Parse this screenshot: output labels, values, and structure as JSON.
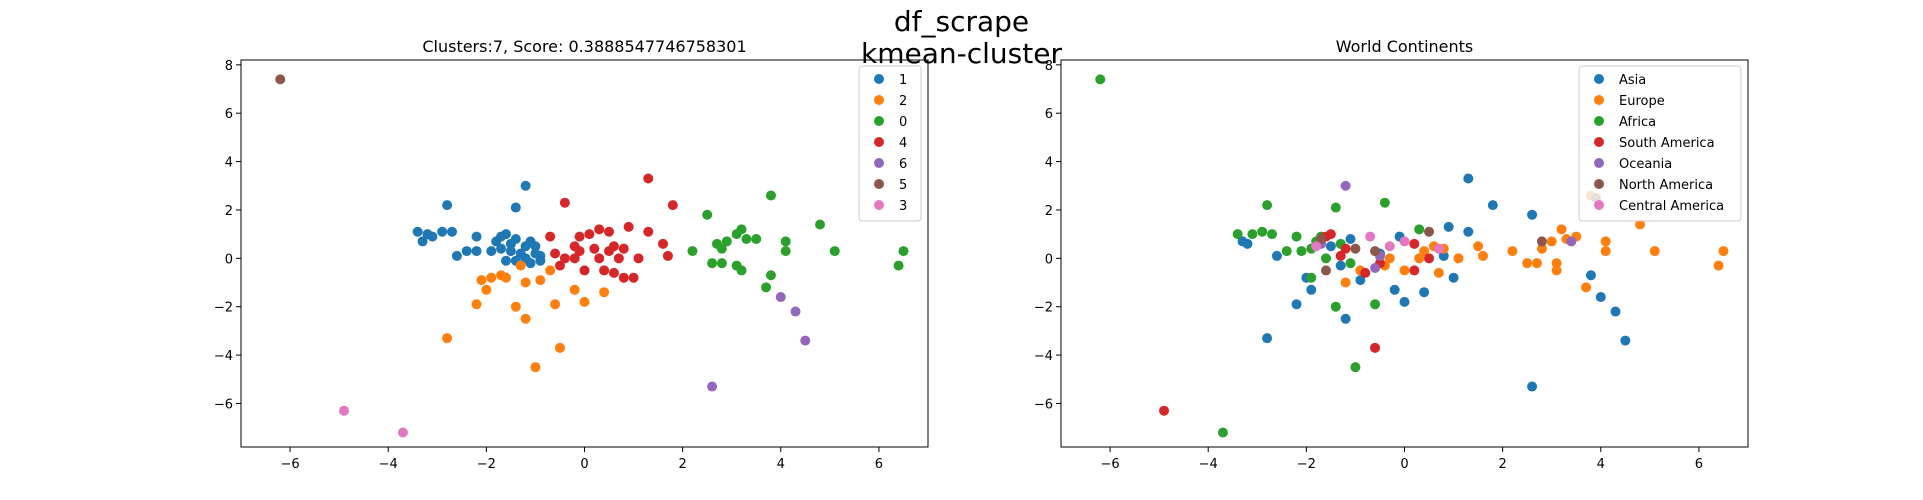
{
  "figure": {
    "suptitle_line1": "df_scrape",
    "suptitle_line2": "kmean-cluster"
  },
  "chart_data": [
    {
      "type": "scatter",
      "title": "Clusters:7, Score: 0.3888547746758301",
      "xlim": [
        -7.0,
        7.0
      ],
      "ylim": [
        -7.8,
        8.2
      ],
      "xticks": [
        -6,
        -4,
        -2,
        0,
        2,
        4,
        6
      ],
      "yticks": [
        -6,
        -4,
        -2,
        0,
        2,
        4,
        6,
        8
      ],
      "grid": false,
      "legend_position": "top-right",
      "series": [
        {
          "name": "1",
          "color": "#1f77b4",
          "points": [
            [
              -2.9,
              1.1
            ],
            [
              -3.2,
              1.0
            ],
            [
              -3.3,
              0.7
            ],
            [
              -3.4,
              1.1
            ],
            [
              -3.1,
              0.9
            ],
            [
              -2.8,
              2.2
            ],
            [
              -2.7,
              1.1
            ],
            [
              -2.6,
              0.1
            ],
            [
              -2.4,
              0.3
            ],
            [
              -2.2,
              0.3
            ],
            [
              -2.2,
              0.9
            ],
            [
              -1.9,
              0.3
            ],
            [
              -1.8,
              0.7
            ],
            [
              -1.7,
              0.9
            ],
            [
              -1.6,
              1.0
            ],
            [
              -1.5,
              0.6
            ],
            [
              -1.4,
              0.8
            ],
            [
              -1.3,
              0.2
            ],
            [
              -1.2,
              0.5
            ],
            [
              -1.1,
              0.7
            ],
            [
              -1.0,
              0.5
            ],
            [
              -1.6,
              -0.1
            ],
            [
              -1.4,
              -0.1
            ],
            [
              -1.2,
              0.0
            ],
            [
              -1.1,
              -0.2
            ],
            [
              -0.9,
              0.1
            ],
            [
              -0.9,
              -0.1
            ],
            [
              -1.4,
              2.1
            ],
            [
              -1.2,
              3.0
            ],
            [
              -1.7,
              0.4
            ],
            [
              -1.5,
              0.3
            ],
            [
              -1.0,
              0.2
            ]
          ]
        },
        {
          "name": "2",
          "color": "#ff7f0e",
          "points": [
            [
              -2.8,
              -3.3
            ],
            [
              -2.2,
              -1.9
            ],
            [
              -2.1,
              -0.9
            ],
            [
              -1.9,
              -0.8
            ],
            [
              -2.0,
              -1.3
            ],
            [
              -1.6,
              -0.8
            ],
            [
              -1.4,
              -2.0
            ],
            [
              -1.2,
              -1.0
            ],
            [
              -1.2,
              -2.5
            ],
            [
              -1.0,
              -4.5
            ],
            [
              -0.9,
              -0.9
            ],
            [
              -0.7,
              -0.5
            ],
            [
              -0.6,
              -1.9
            ],
            [
              -0.5,
              -3.7
            ],
            [
              -0.2,
              -1.3
            ],
            [
              0.0,
              -1.8
            ],
            [
              0.4,
              -1.4
            ],
            [
              -1.3,
              -0.3
            ],
            [
              -1.7,
              -0.7
            ]
          ]
        },
        {
          "name": "0",
          "color": "#2ca02c",
          "points": [
            [
              2.2,
              0.3
            ],
            [
              2.5,
              1.8
            ],
            [
              2.6,
              -0.2
            ],
            [
              2.7,
              0.6
            ],
            [
              2.8,
              0.4
            ],
            [
              2.9,
              0.7
            ],
            [
              2.8,
              -0.2
            ],
            [
              3.1,
              1.0
            ],
            [
              3.1,
              -0.3
            ],
            [
              3.2,
              1.2
            ],
            [
              3.2,
              -0.5
            ],
            [
              3.3,
              0.8
            ],
            [
              3.5,
              0.8
            ],
            [
              3.7,
              -1.2
            ],
            [
              3.8,
              2.6
            ],
            [
              3.8,
              -0.7
            ],
            [
              4.1,
              0.3
            ],
            [
              4.1,
              0.7
            ],
            [
              4.8,
              1.4
            ],
            [
              5.1,
              0.3
            ],
            [
              6.4,
              -0.3
            ],
            [
              6.5,
              0.3
            ]
          ]
        },
        {
          "name": "4",
          "color": "#d62728",
          "points": [
            [
              -0.7,
              0.9
            ],
            [
              -0.6,
              0.2
            ],
            [
              -0.5,
              -0.3
            ],
            [
              -0.4,
              0.0
            ],
            [
              -0.4,
              2.3
            ],
            [
              -0.2,
              0.5
            ],
            [
              -0.1,
              0.9
            ],
            [
              -0.2,
              0.0
            ],
            [
              0.0,
              -0.5
            ],
            [
              0.1,
              1.0
            ],
            [
              0.2,
              0.4
            ],
            [
              0.3,
              1.2
            ],
            [
              0.3,
              0.0
            ],
            [
              0.5,
              0.3
            ],
            [
              0.5,
              1.1
            ],
            [
              0.6,
              0.5
            ],
            [
              0.6,
              -0.6
            ],
            [
              0.7,
              0.0
            ],
            [
              0.8,
              0.4
            ],
            [
              0.9,
              1.3
            ],
            [
              1.0,
              -0.8
            ],
            [
              1.1,
              0.0
            ],
            [
              1.3,
              1.1
            ],
            [
              1.3,
              3.3
            ],
            [
              1.6,
              0.6
            ],
            [
              1.7,
              0.1
            ],
            [
              1.8,
              2.2
            ],
            [
              0.4,
              -0.5
            ],
            [
              0.8,
              -0.8
            ],
            [
              -0.1,
              0.3
            ]
          ]
        },
        {
          "name": "6",
          "color": "#9467bd",
          "points": [
            [
              2.6,
              -5.3
            ],
            [
              4.0,
              -1.6
            ],
            [
              4.3,
              -2.2
            ],
            [
              4.5,
              -3.4
            ]
          ]
        },
        {
          "name": "5",
          "color": "#8c564b",
          "points": [
            [
              -6.2,
              7.4
            ]
          ]
        },
        {
          "name": "3",
          "color": "#e377c2",
          "points": [
            [
              -4.9,
              -6.3
            ],
            [
              -3.7,
              -7.2
            ]
          ]
        }
      ]
    },
    {
      "type": "scatter",
      "title": "World Continents",
      "xlim": [
        -7.0,
        7.0
      ],
      "ylim": [
        -7.8,
        8.2
      ],
      "xticks": [
        -6,
        -4,
        -2,
        0,
        2,
        4,
        6
      ],
      "yticks": [
        -6,
        -4,
        -2,
        0,
        2,
        4,
        6,
        8
      ],
      "grid": false,
      "legend_position": "top-right",
      "series": [
        {
          "name": "Asia",
          "color": "#1f77b4",
          "points": [
            [
              -2.8,
              -3.3
            ],
            [
              -3.3,
              0.7
            ],
            [
              -3.2,
              0.6
            ],
            [
              -2.6,
              0.1
            ],
            [
              -2.2,
              -1.9
            ],
            [
              -2.0,
              -0.8
            ],
            [
              -1.9,
              -1.3
            ],
            [
              -1.5,
              0.5
            ],
            [
              -1.3,
              -0.3
            ],
            [
              -1.2,
              -2.5
            ],
            [
              -1.1,
              0.8
            ],
            [
              -0.9,
              -0.9
            ],
            [
              -0.5,
              0.2
            ],
            [
              -0.2,
              -1.3
            ],
            [
              -0.1,
              0.9
            ],
            [
              0.0,
              -1.8
            ],
            [
              0.4,
              -1.4
            ],
            [
              0.8,
              0.1
            ],
            [
              0.9,
              1.3
            ],
            [
              1.0,
              -0.8
            ],
            [
              1.3,
              3.3
            ],
            [
              1.3,
              1.1
            ],
            [
              1.8,
              2.2
            ],
            [
              2.6,
              -5.3
            ],
            [
              3.8,
              -0.7
            ],
            [
              4.0,
              -1.6
            ],
            [
              4.3,
              -2.2
            ],
            [
              4.5,
              -3.4
            ],
            [
              2.6,
              1.8
            ]
          ]
        },
        {
          "name": "Europe",
          "color": "#ff7f0e",
          "points": [
            [
              -1.2,
              -1.0
            ],
            [
              -0.9,
              -0.5
            ],
            [
              -0.3,
              0.0
            ],
            [
              0.0,
              -0.5
            ],
            [
              0.3,
              0.0
            ],
            [
              0.4,
              0.3
            ],
            [
              0.6,
              0.5
            ],
            [
              0.7,
              -0.6
            ],
            [
              0.8,
              0.4
            ],
            [
              1.1,
              0.0
            ],
            [
              1.5,
              0.5
            ],
            [
              1.6,
              0.1
            ],
            [
              2.2,
              0.3
            ],
            [
              2.5,
              -0.2
            ],
            [
              2.8,
              0.4
            ],
            [
              3.0,
              0.7
            ],
            [
              3.1,
              -0.2
            ],
            [
              3.2,
              1.2
            ],
            [
              3.3,
              0.8
            ],
            [
              3.5,
              0.9
            ],
            [
              3.7,
              -1.2
            ],
            [
              3.8,
              2.6
            ],
            [
              4.1,
              0.3
            ],
            [
              4.1,
              0.7
            ],
            [
              4.8,
              1.4
            ],
            [
              5.1,
              0.3
            ],
            [
              6.4,
              -0.3
            ],
            [
              6.5,
              0.3
            ],
            [
              2.7,
              -0.2
            ],
            [
              3.1,
              -0.5
            ],
            [
              -0.4,
              -0.3
            ]
          ]
        },
        {
          "name": "Africa",
          "color": "#2ca02c",
          "points": [
            [
              -6.2,
              7.4
            ],
            [
              -3.7,
              -7.2
            ],
            [
              -3.4,
              1.0
            ],
            [
              -3.1,
              1.0
            ],
            [
              -2.9,
              1.1
            ],
            [
              -2.7,
              1.0
            ],
            [
              -2.8,
              2.2
            ],
            [
              -2.4,
              0.3
            ],
            [
              -2.2,
              0.9
            ],
            [
              -2.1,
              0.3
            ],
            [
              -1.9,
              0.4
            ],
            [
              -1.8,
              0.7
            ],
            [
              -1.7,
              0.9
            ],
            [
              -1.6,
              0.0
            ],
            [
              -1.4,
              2.1
            ],
            [
              -1.3,
              0.6
            ],
            [
              -1.1,
              -0.2
            ],
            [
              -1.0,
              -4.5
            ],
            [
              -1.4,
              -2.0
            ],
            [
              -0.6,
              -1.9
            ],
            [
              -0.4,
              2.3
            ],
            [
              0.3,
              1.2
            ],
            [
              -1.9,
              -0.8
            ]
          ]
        },
        {
          "name": "South America",
          "color": "#d62728",
          "points": [
            [
              -4.9,
              -6.3
            ],
            [
              -1.6,
              0.9
            ],
            [
              -1.5,
              1.0
            ],
            [
              -1.3,
              0.1
            ],
            [
              -1.2,
              0.4
            ],
            [
              -0.8,
              -0.6
            ],
            [
              -0.6,
              -3.7
            ],
            [
              -0.5,
              -0.2
            ],
            [
              0.2,
              0.6
            ],
            [
              0.5,
              0.0
            ],
            [
              0.2,
              -0.5
            ]
          ]
        },
        {
          "name": "Oceania",
          "color": "#9467bd",
          "points": [
            [
              -1.2,
              3.0
            ],
            [
              -1.7,
              0.6
            ],
            [
              -0.6,
              -0.4
            ],
            [
              -0.5,
              0.1
            ],
            [
              3.4,
              0.7
            ]
          ]
        },
        {
          "name": "North America",
          "color": "#8c564b",
          "points": [
            [
              -1.7,
              0.8
            ],
            [
              -1.6,
              -0.5
            ],
            [
              -1.0,
              0.4
            ],
            [
              -0.6,
              0.3
            ],
            [
              0.5,
              1.1
            ],
            [
              2.8,
              0.7
            ],
            [
              3.9,
              2.5
            ]
          ]
        },
        {
          "name": "Central America",
          "color": "#e377c2",
          "points": [
            [
              -1.8,
              0.5
            ],
            [
              -0.7,
              0.9
            ],
            [
              -0.3,
              0.5
            ],
            [
              0.0,
              0.7
            ],
            [
              0.7,
              0.4
            ]
          ]
        }
      ]
    }
  ]
}
